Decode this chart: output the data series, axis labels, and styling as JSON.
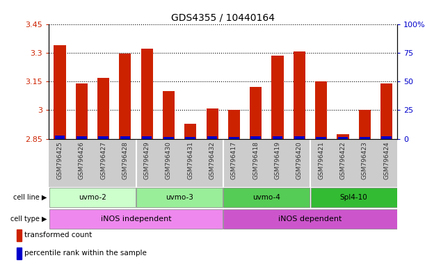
{
  "title": "GDS4355 / 10440164",
  "samples": [
    "GSM796425",
    "GSM796426",
    "GSM796427",
    "GSM796428",
    "GSM796429",
    "GSM796430",
    "GSM796431",
    "GSM796432",
    "GSM796417",
    "GSM796418",
    "GSM796419",
    "GSM796420",
    "GSM796421",
    "GSM796422",
    "GSM796423",
    "GSM796424"
  ],
  "red_values": [
    3.34,
    3.14,
    3.17,
    3.295,
    3.32,
    3.1,
    2.93,
    3.01,
    3.0,
    3.12,
    3.285,
    3.305,
    3.15,
    2.875,
    3.0,
    3.14
  ],
  "blue_heights": [
    0.016,
    0.012,
    0.012,
    0.014,
    0.014,
    0.009,
    0.009,
    0.012,
    0.009,
    0.012,
    0.012,
    0.014,
    0.009,
    0.009,
    0.009,
    0.012
  ],
  "ymin": 2.85,
  "ymax": 3.45,
  "yright_min": 0,
  "yright_max": 100,
  "yticks_left": [
    2.85,
    3.0,
    3.15,
    3.3,
    3.45
  ],
  "yticks_right": [
    0,
    25,
    50,
    75,
    100
  ],
  "ytick_labels_left": [
    "2.85",
    "3",
    "3.15",
    "3.3",
    "3.45"
  ],
  "ytick_labels_right": [
    "0",
    "25",
    "50",
    "75",
    "100%"
  ],
  "bar_color": "#cc2200",
  "blue_color": "#0000cc",
  "baseline": 2.85,
  "cell_lines": [
    {
      "label": "uvmo-2",
      "start": 0,
      "end": 4,
      "color": "#ccffcc"
    },
    {
      "label": "uvmo-3",
      "start": 4,
      "end": 8,
      "color": "#99ee99"
    },
    {
      "label": "uvmo-4",
      "start": 8,
      "end": 12,
      "color": "#55cc55"
    },
    {
      "label": "Spl4-10",
      "start": 12,
      "end": 16,
      "color": "#33bb33"
    }
  ],
  "cell_types": [
    {
      "label": "iNOS independent",
      "start": 0,
      "end": 8,
      "color": "#ee88ee"
    },
    {
      "label": "iNOS dependent",
      "start": 8,
      "end": 16,
      "color": "#cc55cc"
    }
  ],
  "legend_items": [
    {
      "label": "transformed count",
      "color": "#cc2200"
    },
    {
      "label": "percentile rank within the sample",
      "color": "#0000cc"
    }
  ],
  "cell_line_row_label": "cell line",
  "cell_type_row_label": "cell type",
  "bar_width": 0.55,
  "ylabel_left_color": "#cc2200",
  "ylabel_right_color": "#0000cc",
  "title_fontsize": 10,
  "xlabel_color": "#333333",
  "xticklabel_bg": "#cccccc"
}
